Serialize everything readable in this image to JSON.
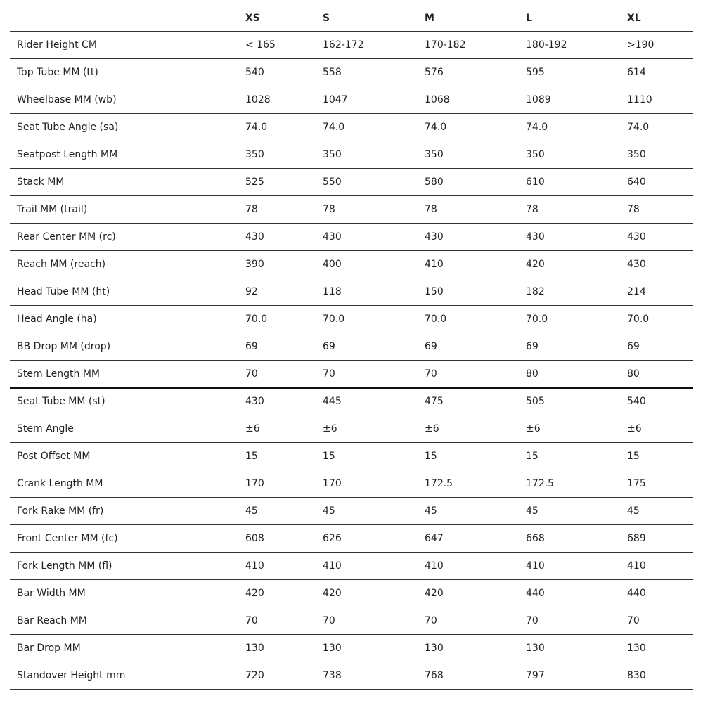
{
  "table": {
    "columns": [
      "XS",
      "S",
      "M",
      "L",
      "XL"
    ],
    "rows": [
      [
        "Rider Height CM",
        "< 165",
        "162-172",
        "170-182",
        "180-192",
        ">190"
      ],
      [
        "Top Tube MM (tt)",
        "540",
        "558",
        "576",
        "595",
        "614"
      ],
      [
        "Wheelbase MM (wb)",
        "1028",
        "1047",
        "1068",
        "1089",
        "1110"
      ],
      [
        "Seat Tube Angle (sa)",
        "74.0",
        "74.0",
        "74.0",
        "74.0",
        "74.0"
      ],
      [
        "Seatpost Length MM",
        "350",
        "350",
        "350",
        "350",
        "350"
      ],
      [
        "Stack MM",
        "525",
        "550",
        "580",
        "610",
        "640"
      ],
      [
        "Trail MM (trail)",
        "78",
        "78",
        "78",
        "78",
        "78"
      ],
      [
        "Rear Center MM (rc)",
        "430",
        "430",
        "430",
        "430",
        "430"
      ],
      [
        "Reach MM (reach)",
        "390",
        "400",
        "410",
        "420",
        "430"
      ],
      [
        "Head Tube MM (ht)",
        "92",
        "118",
        "150",
        "182",
        "214"
      ],
      [
        "Head Angle (ha)",
        "70.0",
        "70.0",
        "70.0",
        "70.0",
        "70.0"
      ],
      [
        "BB Drop MM (drop)",
        "69",
        "69",
        "69",
        "69",
        "69"
      ],
      [
        "Stem Length MM",
        "70",
        "70",
        "70",
        "80",
        "80"
      ],
      [
        "Seat Tube MM (st)",
        "430",
        "445",
        "475",
        "505",
        "540"
      ],
      [
        "Stem Angle",
        "±6",
        "±6",
        "±6",
        "±6",
        "±6"
      ],
      [
        "Post Offset MM",
        "15",
        "15",
        "15",
        "15",
        "15"
      ],
      [
        "Crank Length MM",
        "170",
        "170",
        "172.5",
        "172.5",
        "175"
      ],
      [
        "Fork Rake MM (fr)",
        "45",
        "45",
        "45",
        "45",
        "45"
      ],
      [
        "Front Center MM (fc)",
        "608",
        "626",
        "647",
        "668",
        "689"
      ],
      [
        "Fork Length MM (fl)",
        "410",
        "410",
        "410",
        "410",
        "410"
      ],
      [
        "Bar Width MM",
        "420",
        "420",
        "420",
        "440",
        "440"
      ],
      [
        "Bar Reach MM",
        "70",
        "70",
        "70",
        "70",
        "70"
      ],
      [
        "Bar Drop MM",
        "130",
        "130",
        "130",
        "130",
        "130"
      ],
      [
        "Standover Height mm",
        "720",
        "738",
        "768",
        "797",
        "830"
      ]
    ]
  }
}
